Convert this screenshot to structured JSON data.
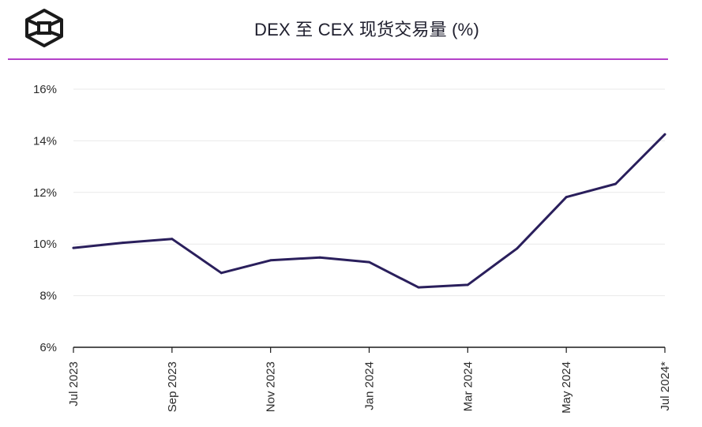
{
  "header": {
    "title": "DEX 至 CEX 现货交易量 (%)",
    "logo": "cube-logo-icon"
  },
  "colors": {
    "line": "#2a1f5c",
    "accent_rule": "#b441c9",
    "grid": "#e9e9e9",
    "axis": "#1a1a1a"
  },
  "chart_data": {
    "type": "line",
    "title": "DEX 至 CEX 现货交易量 (%)",
    "xlabel": "",
    "ylabel": "",
    "ylim": [
      6,
      16
    ],
    "yticks": [
      6,
      8,
      10,
      12,
      14,
      16
    ],
    "ytick_labels": [
      "6%",
      "8%",
      "10%",
      "12%",
      "14%",
      "16%"
    ],
    "grid": true,
    "categories": [
      "Jul 2023",
      "Aug 2023",
      "Sep 2023",
      "Oct 2023",
      "Nov 2023",
      "Dec 2023",
      "Jan 2024",
      "Feb 2024",
      "Mar 2024",
      "Apr 2024",
      "May 2024",
      "Jun 2024",
      "Jul 2024*"
    ],
    "xtick_labels": [
      "Jul 2023",
      "",
      "Sep 2023",
      "",
      "Nov 2023",
      "",
      "Jan 2024",
      "",
      "Mar 2024",
      "",
      "May 2024",
      "",
      "Jul 2024*"
    ],
    "series": [
      {
        "name": "DEX to CEX spot volume",
        "values": [
          9.85,
          10.05,
          10.2,
          8.88,
          9.37,
          9.48,
          9.3,
          8.32,
          8.42,
          9.83,
          11.82,
          12.33,
          14.25
        ]
      }
    ]
  }
}
